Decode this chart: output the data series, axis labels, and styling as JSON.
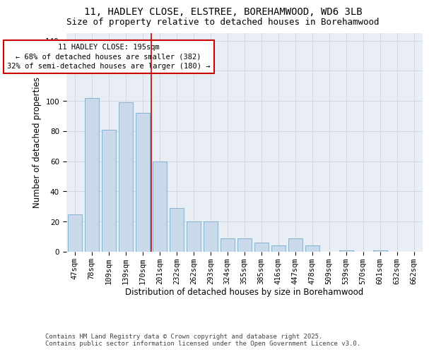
{
  "title_line1": "11, HADLEY CLOSE, ELSTREE, BOREHAMWOOD, WD6 3LB",
  "title_line2": "Size of property relative to detached houses in Borehamwood",
  "xlabel": "Distribution of detached houses by size in Borehamwood",
  "ylabel": "Number of detached properties",
  "categories": [
    "47sqm",
    "78sqm",
    "109sqm",
    "139sqm",
    "170sqm",
    "201sqm",
    "232sqm",
    "262sqm",
    "293sqm",
    "324sqm",
    "355sqm",
    "385sqm",
    "416sqm",
    "447sqm",
    "478sqm",
    "509sqm",
    "539sqm",
    "570sqm",
    "601sqm",
    "632sqm",
    "662sqm"
  ],
  "values": [
    25,
    102,
    81,
    99,
    92,
    60,
    29,
    20,
    20,
    9,
    9,
    6,
    4,
    9,
    4,
    0,
    1,
    0,
    1,
    0,
    0
  ],
  "bar_color": "#c9d9e9",
  "bar_edge_color": "#7aaac8",
  "vline_color": "#cc0000",
  "vline_x": 4.5,
  "annotation_text": "11 HADLEY CLOSE: 195sqm\n← 68% of detached houses are smaller (382)\n32% of semi-detached houses are larger (180) →",
  "annotation_box_color": "#cc0000",
  "ylim": [
    0,
    145
  ],
  "yticks": [
    0,
    20,
    40,
    60,
    80,
    100,
    120,
    140
  ],
  "grid_color": "#d0d8e0",
  "bg_color": "#e8eef4",
  "footer_line1": "Contains HM Land Registry data © Crown copyright and database right 2025.",
  "footer_line2": "Contains public sector information licensed under the Open Government Licence v3.0.",
  "title_fontsize": 10,
  "subtitle_fontsize": 9,
  "axis_label_fontsize": 8.5,
  "tick_fontsize": 7.5,
  "annotation_fontsize": 7.5,
  "footer_fontsize": 6.5
}
